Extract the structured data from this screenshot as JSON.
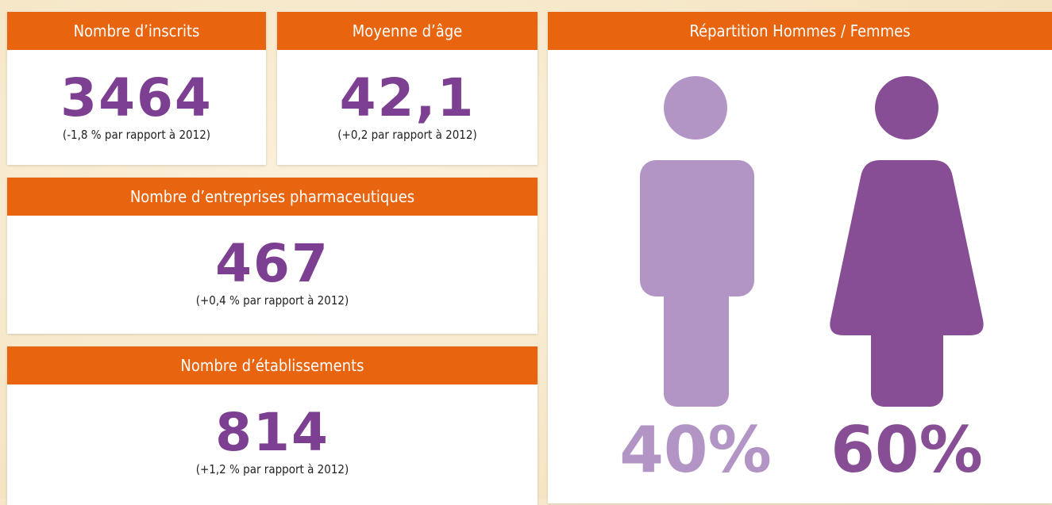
{
  "cards": [
    {
      "title": "Nombre d’inscrits",
      "value": "3464",
      "note": "(-1,8 % par rapport à 2012)"
    },
    {
      "title": "Moyenne d’âge",
      "value": "42,1",
      "note": "(+0,2 par rapport à 2012)"
    },
    {
      "title": "Nombre d’entreprises pharmaceutiques",
      "value": "467",
      "note": "(+0,4 % par rapport à 2012)"
    },
    {
      "title": "Nombre d’établissements",
      "value": "814",
      "note": "(+1,2 % par rapport à 2012)"
    }
  ],
  "gender": {
    "title": "Répartition Hommes / Femmes",
    "men": "40%",
    "women": "60%"
  }
}
